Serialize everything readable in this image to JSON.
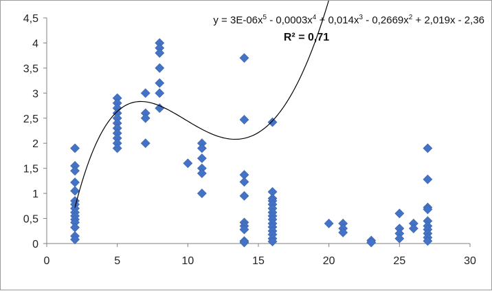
{
  "chart_data": {
    "type": "scatter",
    "xlim": [
      0,
      30
    ],
    "ylim": [
      0,
      4.5
    ],
    "x_ticks": [
      "0",
      "5",
      "10",
      "15",
      "20",
      "25",
      "30"
    ],
    "y_ticks": [
      "0",
      "0,5",
      "1",
      "1,5",
      "2",
      "2,5",
      "3",
      "3,5",
      "4",
      "4,5"
    ],
    "x_tick_values": [
      0,
      5,
      10,
      15,
      20,
      25,
      30
    ],
    "y_tick_values": [
      0,
      0.5,
      1,
      1.5,
      2,
      2.5,
      3,
      3.5,
      4,
      4.5
    ],
    "grid": false,
    "marker_color": "#4472C4",
    "trendline_color": "#000000",
    "trendline": {
      "type": "polynomial",
      "order": 5,
      "coefficients": [
        -2.36,
        2.019,
        -0.2669,
        0.014,
        -0.0003,
        3e-06
      ],
      "x_range": [
        2,
        27
      ]
    },
    "annotations": {
      "equation": "y = 3E-06x5 - 0,0003x4 + 0,014x3 - 0,2669x2 + 2,019x - 2,36",
      "equation_parts": [
        "y = 3E-06x",
        "5",
        " - 0,0003x",
        "4",
        " + 0,014x",
        "3",
        " - 0,2669x",
        "2",
        " + 2,019x - 2,36"
      ],
      "r2_label": "R² = ",
      "r2_value": "0,71"
    },
    "points": [
      [
        2,
        1.9
      ],
      [
        2,
        1.55
      ],
      [
        2,
        1.45
      ],
      [
        2,
        1.22
      ],
      [
        2,
        1.05
      ],
      [
        2,
        0.85
      ],
      [
        2,
        0.78
      ],
      [
        2,
        0.7
      ],
      [
        2,
        0.62
      ],
      [
        2,
        0.55
      ],
      [
        2,
        0.48
      ],
      [
        2,
        0.42
      ],
      [
        2,
        0.32
      ],
      [
        2,
        0.15
      ],
      [
        2,
        0.08
      ],
      [
        5,
        2.9
      ],
      [
        5,
        2.8
      ],
      [
        5,
        2.7
      ],
      [
        5,
        2.6
      ],
      [
        5,
        2.5
      ],
      [
        5,
        2.4
      ],
      [
        5,
        2.3
      ],
      [
        5,
        2.2
      ],
      [
        5,
        2.1
      ],
      [
        5,
        2.0
      ],
      [
        5,
        1.9
      ],
      [
        7,
        3.0
      ],
      [
        7,
        2.6
      ],
      [
        7,
        2.5
      ],
      [
        7,
        2.0
      ],
      [
        8,
        4.0
      ],
      [
        8,
        3.9
      ],
      [
        8,
        3.8
      ],
      [
        8,
        3.5
      ],
      [
        8,
        3.2
      ],
      [
        8,
        3.0
      ],
      [
        8,
        2.7
      ],
      [
        10,
        1.6
      ],
      [
        11,
        2.0
      ],
      [
        11,
        1.9
      ],
      [
        11,
        1.7
      ],
      [
        11,
        1.5
      ],
      [
        11,
        1.4
      ],
      [
        11,
        1.0
      ],
      [
        14,
        3.7
      ],
      [
        14,
        2.47
      ],
      [
        14,
        1.37
      ],
      [
        14,
        1.23
      ],
      [
        14,
        0.95
      ],
      [
        14,
        0.42
      ],
      [
        14,
        0.35
      ],
      [
        14,
        0.28
      ],
      [
        14,
        0.05
      ],
      [
        14,
        0.02
      ],
      [
        16,
        2.42
      ],
      [
        16,
        1.03
      ],
      [
        16,
        0.9
      ],
      [
        16,
        0.85
      ],
      [
        16,
        0.78
      ],
      [
        16,
        0.7
      ],
      [
        16,
        0.62
      ],
      [
        16,
        0.55
      ],
      [
        16,
        0.48
      ],
      [
        16,
        0.4
      ],
      [
        16,
        0.33
      ],
      [
        16,
        0.25
      ],
      [
        16,
        0.18
      ],
      [
        16,
        0.1
      ],
      [
        16,
        0.04
      ],
      [
        20,
        0.4
      ],
      [
        21,
        0.4
      ],
      [
        21,
        0.3
      ],
      [
        21,
        0.22
      ],
      [
        23,
        0.06
      ],
      [
        23,
        0.02
      ],
      [
        25,
        0.6
      ],
      [
        25,
        0.3
      ],
      [
        25,
        0.2
      ],
      [
        25,
        0.1
      ],
      [
        26,
        0.4
      ],
      [
        26,
        0.3
      ],
      [
        27,
        1.9
      ],
      [
        27,
        1.28
      ],
      [
        27,
        0.72
      ],
      [
        27,
        0.68
      ],
      [
        27,
        0.45
      ],
      [
        27,
        0.35
      ],
      [
        27,
        0.28
      ],
      [
        27,
        0.2
      ],
      [
        27,
        0.12
      ],
      [
        27,
        0.05
      ]
    ]
  }
}
